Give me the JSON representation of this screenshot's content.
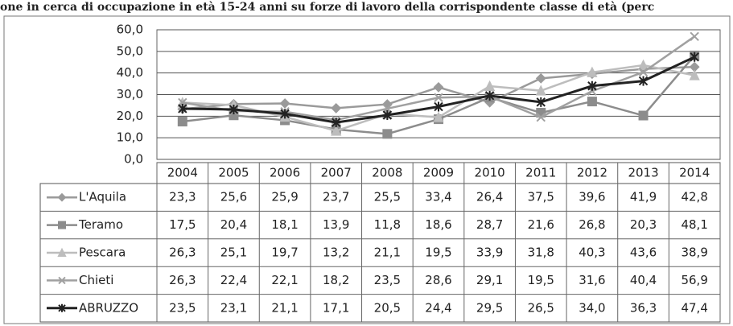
{
  "chart_data": {
    "type": "line",
    "title": "one in cerca di occupazione in età 15-24 anni su forze di lavoro della corrispondente classe di età (perc",
    "categories": [
      "2004",
      "2005",
      "2006",
      "2007",
      "2008",
      "2009",
      "2010",
      "2011",
      "2012",
      "2013",
      "2014"
    ],
    "ylim": [
      0,
      60
    ],
    "yticks": [
      {
        "value": 0,
        "label": "0,0"
      },
      {
        "value": 10,
        "label": "10,0"
      },
      {
        "value": 20,
        "label": "20,0"
      },
      {
        "value": 30,
        "label": "30,0"
      },
      {
        "value": 40,
        "label": "40,0"
      },
      {
        "value": 50,
        "label": "50,0"
      },
      {
        "value": 60,
        "label": "60,0"
      }
    ],
    "grid": true,
    "series": [
      {
        "name": "L'Aquila",
        "color": "#9a9a9a",
        "marker": "diamond",
        "values": [
          23.3,
          25.6,
          25.9,
          23.7,
          25.5,
          33.4,
          26.4,
          37.5,
          39.6,
          41.9,
          42.8
        ],
        "value_labels": [
          "23,3",
          "25,6",
          "25,9",
          "23,7",
          "25,5",
          "33,4",
          "26,4",
          "37,5",
          "39,6",
          "41,9",
          "42,8"
        ]
      },
      {
        "name": "Teramo",
        "color": "#8c8c8c",
        "marker": "square",
        "values": [
          17.5,
          20.4,
          18.1,
          13.9,
          11.8,
          18.6,
          28.7,
          21.6,
          26.8,
          20.3,
          48.1
        ],
        "value_labels": [
          "17,5",
          "20,4",
          "18,1",
          "13,9",
          "11,8",
          "18,6",
          "28,7",
          "21,6",
          "26,8",
          "20,3",
          "48,1"
        ]
      },
      {
        "name": "Pescara",
        "color": "#bdbdbd",
        "marker": "triangle",
        "values": [
          26.3,
          25.1,
          19.7,
          13.2,
          21.1,
          19.5,
          33.9,
          31.8,
          40.3,
          43.6,
          38.9
        ],
        "value_labels": [
          "26,3",
          "25,1",
          "19,7",
          "13,2",
          "21,1",
          "19,5",
          "33,9",
          "31,8",
          "40,3",
          "43,6",
          "38,9"
        ]
      },
      {
        "name": "Chieti",
        "color": "#a0a0a0",
        "marker": "x",
        "values": [
          26.3,
          22.4,
          22.1,
          18.2,
          23.5,
          28.6,
          29.1,
          19.5,
          31.6,
          40.4,
          56.9
        ],
        "value_labels": [
          "26,3",
          "22,4",
          "22,1",
          "18,2",
          "23,5",
          "28,6",
          "29,1",
          "19,5",
          "31,6",
          "40,4",
          "56,9"
        ]
      },
      {
        "name": "ABRUZZO",
        "color": "#222222",
        "marker": "star",
        "values": [
          23.5,
          23.1,
          21.1,
          17.1,
          20.5,
          24.4,
          29.5,
          26.5,
          34.0,
          36.3,
          47.4
        ],
        "value_labels": [
          "23,5",
          "23,1",
          "21,1",
          "17,1",
          "20,5",
          "24,4",
          "29,5",
          "26,5",
          "34,0",
          "36,3",
          "47,4"
        ]
      }
    ]
  }
}
